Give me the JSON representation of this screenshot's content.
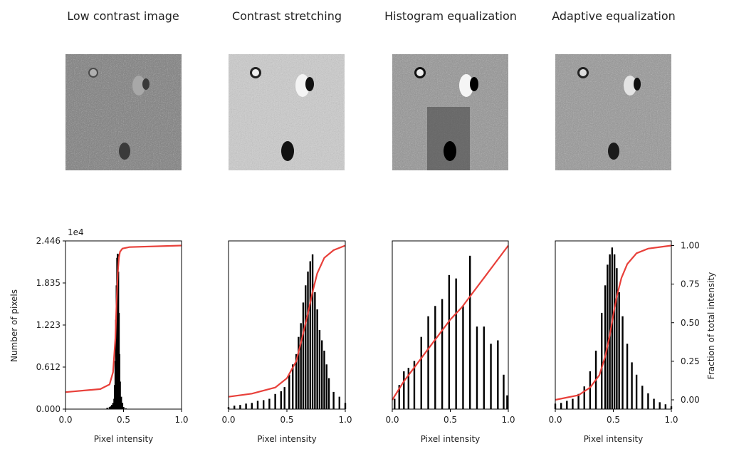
{
  "panel_titles": [
    "Low contrast image",
    "Contrast stretching",
    "Histogram equalization",
    "Adaptive equalization"
  ],
  "colors": {
    "histogram": "#000000",
    "cdf": "#e8403a",
    "image_low": "#8a8a8a",
    "image_stretch": "#c9c9c9",
    "image_eq": "#a5a5a5",
    "image_adapt": "#9e9e9e"
  },
  "chart_data": [
    {
      "type": "bar",
      "panel": "Low contrast image",
      "xlabel": "Pixel intensity",
      "ylabel": "Number of pixels",
      "y2label": "",
      "xlim": [
        0,
        1.0
      ],
      "ylim": [
        0,
        24460
      ],
      "y_offset_label": "1e4",
      "xticks": [
        "0.0",
        "0.5",
        "1.0"
      ],
      "yticks": [
        "0.000",
        "0.612",
        "1.223",
        "1.835",
        "2.446"
      ],
      "hist": {
        "x": [
          0.36,
          0.38,
          0.39,
          0.4,
          0.41,
          0.42,
          0.425,
          0.43,
          0.435,
          0.44,
          0.445,
          0.45,
          0.455,
          0.46,
          0.465,
          0.47,
          0.48,
          0.49,
          0.5,
          0.52
        ],
        "y": [
          200,
          300,
          400,
          600,
          900,
          1500,
          3500,
          7000,
          13000,
          18000,
          22000,
          22600,
          20000,
          14000,
          8000,
          4000,
          1800,
          900,
          300,
          100
        ]
      },
      "cdf": {
        "x": [
          0,
          0.3,
          0.38,
          0.41,
          0.43,
          0.44,
          0.45,
          0.46,
          0.47,
          0.49,
          0.55,
          1.0
        ],
        "y": [
          0.05,
          0.07,
          0.1,
          0.18,
          0.4,
          0.62,
          0.82,
          0.92,
          0.96,
          0.98,
          0.99,
          1.0
        ]
      }
    },
    {
      "type": "bar",
      "panel": "Contrast stretching",
      "xlabel": "Pixel intensity",
      "ylabel": "",
      "y2label": "",
      "xlim": [
        0,
        1.0
      ],
      "ylim": [
        0,
        24460
      ],
      "xticks": [
        "0.0",
        "0.5",
        "1.0"
      ],
      "yticks": [],
      "hist": {
        "x": [
          0.0,
          0.05,
          0.1,
          0.15,
          0.2,
          0.25,
          0.3,
          0.35,
          0.4,
          0.45,
          0.48,
          0.52,
          0.55,
          0.58,
          0.6,
          0.62,
          0.64,
          0.66,
          0.68,
          0.7,
          0.72,
          0.74,
          0.76,
          0.78,
          0.8,
          0.82,
          0.84,
          0.86,
          0.9,
          0.95,
          1.0
        ],
        "y": [
          300,
          500,
          600,
          800,
          900,
          1200,
          1300,
          1500,
          2200,
          2600,
          3200,
          5000,
          6500,
          8000,
          10500,
          12500,
          15500,
          18000,
          20000,
          21500,
          22500,
          17000,
          14500,
          11500,
          10000,
          8500,
          6500,
          4500,
          2500,
          1800,
          900
        ]
      },
      "cdf": {
        "x": [
          0,
          0.2,
          0.4,
          0.5,
          0.58,
          0.63,
          0.68,
          0.72,
          0.76,
          0.82,
          0.9,
          1.0
        ],
        "y": [
          0.02,
          0.04,
          0.08,
          0.14,
          0.25,
          0.4,
          0.56,
          0.7,
          0.82,
          0.92,
          0.97,
          1.0
        ]
      }
    },
    {
      "type": "bar",
      "panel": "Histogram equalization",
      "xlabel": "Pixel intensity",
      "ylabel": "",
      "y2label": "",
      "xlim": [
        0,
        1.0
      ],
      "ylim": [
        0,
        24460
      ],
      "xticks": [
        "0.0",
        "0.5",
        "1.0"
      ],
      "yticks": [],
      "hist": {
        "x": [
          0.02,
          0.06,
          0.1,
          0.14,
          0.19,
          0.25,
          0.31,
          0.37,
          0.43,
          0.49,
          0.55,
          0.61,
          0.67,
          0.73,
          0.79,
          0.85,
          0.91,
          0.96,
          0.99
        ],
        "y": [
          1500,
          3500,
          5500,
          6000,
          7000,
          10500,
          13500,
          15000,
          16000,
          19500,
          19000,
          15000,
          22300,
          12000,
          12000,
          9500,
          10000,
          5000,
          2000
        ]
      },
      "cdf": {
        "x": [
          0,
          0.1,
          0.2,
          0.3,
          0.4,
          0.5,
          0.6,
          0.7,
          0.8,
          0.9,
          1.0
        ],
        "y": [
          0.0,
          0.12,
          0.22,
          0.32,
          0.42,
          0.52,
          0.6,
          0.7,
          0.8,
          0.9,
          1.0
        ]
      }
    },
    {
      "type": "bar",
      "panel": "Adaptive equalization",
      "xlabel": "Pixel intensity",
      "ylabel": "",
      "y2label": "Fraction of total intensity",
      "xlim": [
        0,
        1.0
      ],
      "ylim": [
        0,
        24460
      ],
      "xticks": [
        "0.0",
        "0.5",
        "1.0"
      ],
      "yticks": [],
      "y2lim": [
        -0.06,
        1.03
      ],
      "y2ticks": [
        "0.00",
        "0.25",
        "0.50",
        "0.75",
        "1.00"
      ],
      "hist": {
        "x": [
          0.0,
          0.05,
          0.1,
          0.15,
          0.2,
          0.25,
          0.3,
          0.35,
          0.4,
          0.43,
          0.45,
          0.47,
          0.49,
          0.51,
          0.53,
          0.55,
          0.58,
          0.62,
          0.66,
          0.7,
          0.75,
          0.8,
          0.85,
          0.9,
          0.95,
          1.0
        ],
        "y": [
          800,
          900,
          1200,
          1500,
          2200,
          3300,
          5500,
          8500,
          14000,
          18000,
          21000,
          22500,
          23500,
          22500,
          20500,
          17000,
          13500,
          9500,
          6800,
          5000,
          3400,
          2300,
          1500,
          1000,
          700,
          400
        ]
      },
      "cdf": {
        "x": [
          0,
          0.2,
          0.3,
          0.38,
          0.43,
          0.47,
          0.5,
          0.53,
          0.57,
          0.62,
          0.7,
          0.8,
          1.0
        ],
        "y": [
          0.0,
          0.03,
          0.08,
          0.16,
          0.28,
          0.42,
          0.55,
          0.67,
          0.79,
          0.88,
          0.95,
          0.98,
          1.0
        ]
      }
    }
  ]
}
